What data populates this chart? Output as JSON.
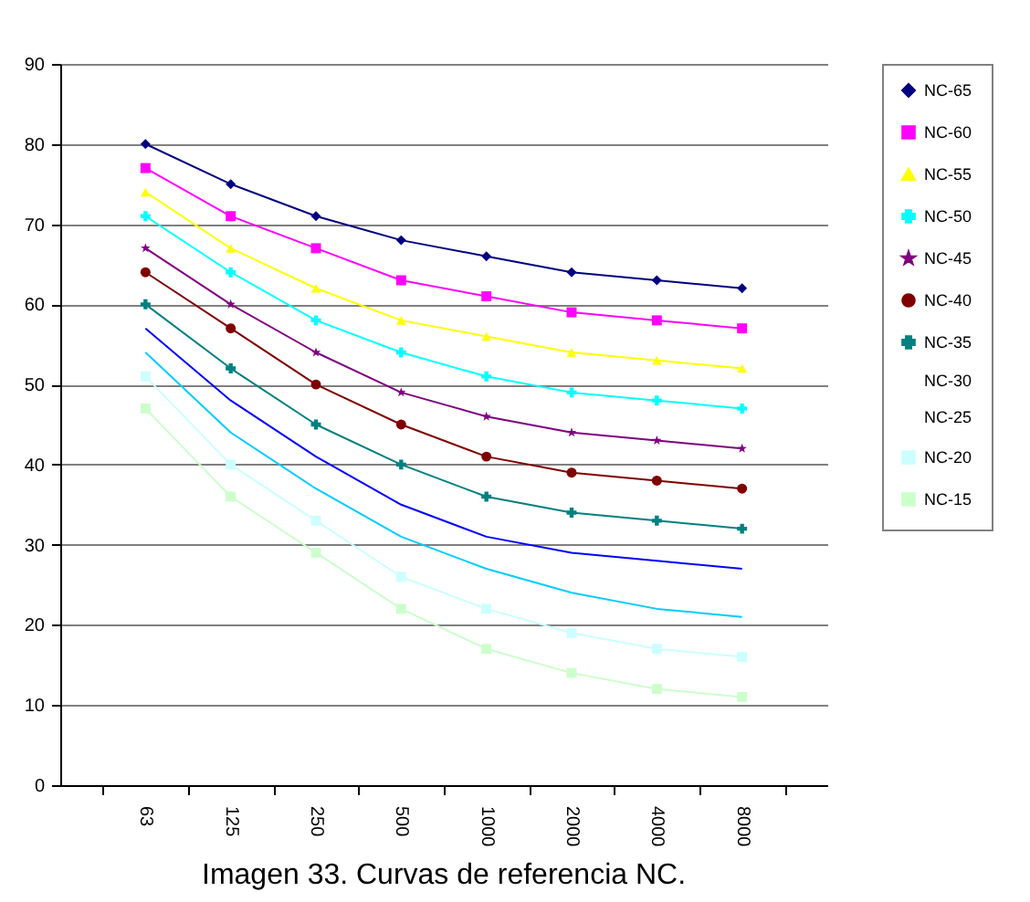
{
  "chart_data": {
    "type": "line",
    "categories": [
      "63",
      "125",
      "250",
      "500",
      "1000",
      "2000",
      "4000",
      "8000"
    ],
    "ylim": [
      0,
      90
    ],
    "yticks": [
      0,
      10,
      20,
      30,
      40,
      50,
      60,
      70,
      80,
      90
    ],
    "grid": "y",
    "legend": "top right",
    "annotations": [
      "Imagen 33. Curvas de referencia NC."
    ],
    "series": [
      {
        "name": "NC-65",
        "color": "#000080",
        "marker": "diamond",
        "values": [
          80,
          75,
          71,
          68,
          66,
          64,
          63,
          62
        ]
      },
      {
        "name": "NC-60",
        "color": "#ff00ff",
        "marker": "square",
        "values": [
          77,
          71,
          67,
          63,
          61,
          59,
          58,
          57
        ]
      },
      {
        "name": "NC-55",
        "color": "#ffff00",
        "marker": "triangle",
        "values": [
          74,
          67,
          62,
          58,
          56,
          54,
          53,
          52
        ]
      },
      {
        "name": "NC-50",
        "color": "#00ffff",
        "marker": "cross",
        "values": [
          71,
          64,
          58,
          54,
          51,
          49,
          48,
          47
        ]
      },
      {
        "name": "NC-45",
        "color": "#800080",
        "marker": "star",
        "values": [
          67,
          60,
          54,
          49,
          46,
          44,
          43,
          42
        ]
      },
      {
        "name": "NC-40",
        "color": "#800000",
        "marker": "circle",
        "values": [
          64,
          57,
          50,
          45,
          41,
          39,
          38,
          37
        ]
      },
      {
        "name": "NC-35",
        "color": "#008080",
        "marker": "cross",
        "values": [
          60,
          52,
          45,
          40,
          36,
          34,
          33,
          32
        ]
      },
      {
        "name": "NC-30",
        "color": "#0000ff",
        "marker": "none",
        "values": [
          57,
          48,
          41,
          35,
          31,
          29,
          28,
          27
        ]
      },
      {
        "name": "NC-25",
        "color": "#00ccff",
        "marker": "none",
        "values": [
          54,
          44,
          37,
          31,
          27,
          24,
          22,
          21
        ]
      },
      {
        "name": "NC-20",
        "color": "#ccffff",
        "marker": "square",
        "values": [
          51,
          40,
          33,
          26,
          22,
          19,
          17,
          16
        ]
      },
      {
        "name": "NC-15",
        "color": "#ccffcc",
        "marker": "square",
        "values": [
          47,
          36,
          29,
          22,
          17,
          14,
          12,
          11
        ]
      }
    ]
  }
}
